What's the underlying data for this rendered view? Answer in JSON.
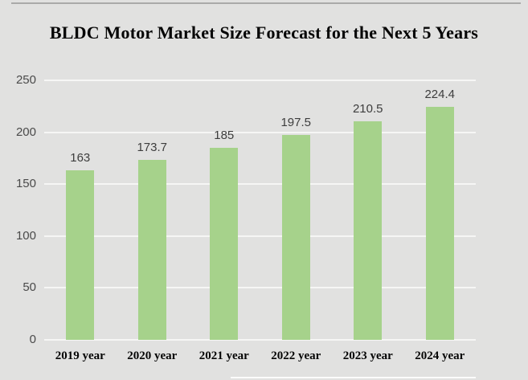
{
  "title": "BLDC Motor Market Size Forecast for the Next 5 Years",
  "colors": {
    "background": "#e1e1e0",
    "bar": "#a6d28b",
    "gridline": "#f6f6f5",
    "axis_text": "#4a4a4a",
    "value_label_text": "#3d3d3d",
    "title_text": "#050505",
    "top_rule": "#aaaaa9"
  },
  "chart_data": {
    "type": "bar",
    "title": "BLDC Motor Market Size Forecast for the Next 5 Years",
    "categories": [
      "2019 year",
      "2020 year",
      "2021 year",
      "2022 year",
      "2023 year",
      "2024 year"
    ],
    "values": [
      163,
      173.7,
      185,
      197.5,
      210.5,
      224.4
    ],
    "value_labels": [
      "163",
      "173.7",
      "185",
      "197.5",
      "210.5",
      "224.4"
    ],
    "xlabel": "",
    "ylabel": "",
    "ylim": [
      0,
      250
    ],
    "yticks": [
      0,
      50,
      100,
      150,
      200,
      250
    ],
    "grid": true,
    "legend": false,
    "bar_color": "#a6d28b"
  }
}
